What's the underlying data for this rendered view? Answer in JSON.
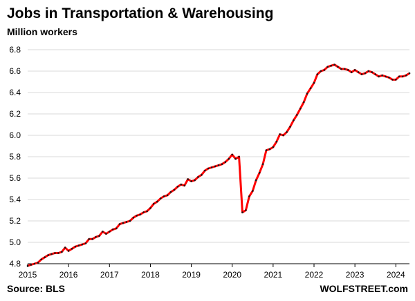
{
  "title": "Jobs in Transportation & Warehousing",
  "subtitle": "Million workers",
  "source": "Source: BLS",
  "brand": "WOLFSTREET.com",
  "colors": {
    "line": "#ff0000",
    "dots": "#1a1a1a",
    "grid": "#d9d9d9",
    "axis": "#000000"
  },
  "chart_data": {
    "type": "line",
    "title": "Jobs in Transportation & Warehousing",
    "ylabel": "Million workers",
    "xlabel": "",
    "xlim": [
      2015.0,
      2024.3333
    ],
    "ylim": [
      4.8,
      6.8
    ],
    "x_ticks": [
      2015,
      2016,
      2017,
      2018,
      2019,
      2020,
      2021,
      2022,
      2023,
      2024
    ],
    "y_ticks": [
      4.8,
      5.0,
      5.2,
      5.4,
      5.6,
      5.8,
      6.0,
      6.2,
      6.4,
      6.6,
      6.8
    ],
    "grid": "horizontal",
    "series": [
      {
        "x": [
          2015.0,
          2015.083,
          2015.167,
          2015.25,
          2015.333,
          2015.417,
          2015.5,
          2015.583,
          2015.667,
          2015.75,
          2015.833,
          2015.917,
          2016.0,
          2016.083,
          2016.167,
          2016.25,
          2016.333,
          2016.417,
          2016.5,
          2016.583,
          2016.667,
          2016.75,
          2016.833,
          2016.917,
          2017.0,
          2017.083,
          2017.167,
          2017.25,
          2017.333,
          2017.417,
          2017.5,
          2017.583,
          2017.667,
          2017.75,
          2017.833,
          2017.917,
          2018.0,
          2018.083,
          2018.167,
          2018.25,
          2018.333,
          2018.417,
          2018.5,
          2018.583,
          2018.667,
          2018.75,
          2018.833,
          2018.917,
          2019.0,
          2019.083,
          2019.167,
          2019.25,
          2019.333,
          2019.417,
          2019.5,
          2019.583,
          2019.667,
          2019.75,
          2019.833,
          2019.917,
          2020.0,
          2020.083,
          2020.167,
          2020.25,
          2020.333,
          2020.417,
          2020.5,
          2020.583,
          2020.667,
          2020.75,
          2020.833,
          2020.917,
          2021.0,
          2021.083,
          2021.167,
          2021.25,
          2021.333,
          2021.417,
          2021.5,
          2021.583,
          2021.667,
          2021.75,
          2021.833,
          2021.917,
          2022.0,
          2022.083,
          2022.167,
          2022.25,
          2022.333,
          2022.417,
          2022.5,
          2022.583,
          2022.667,
          2022.75,
          2022.833,
          2022.917,
          2023.0,
          2023.083,
          2023.167,
          2023.25,
          2023.333,
          2023.417,
          2023.5,
          2023.583,
          2023.667,
          2023.75,
          2023.833,
          2023.917,
          2024.0,
          2024.083,
          2024.167,
          2024.25,
          2024.333
        ],
        "y": [
          4.78,
          4.79,
          4.8,
          4.81,
          4.84,
          4.86,
          4.88,
          4.89,
          4.9,
          4.9,
          4.91,
          4.95,
          4.92,
          4.94,
          4.96,
          4.97,
          4.98,
          4.99,
          5.03,
          5.03,
          5.05,
          5.06,
          5.1,
          5.08,
          5.1,
          5.12,
          5.13,
          5.17,
          5.18,
          5.19,
          5.2,
          5.23,
          5.25,
          5.26,
          5.28,
          5.29,
          5.32,
          5.36,
          5.38,
          5.41,
          5.43,
          5.44,
          5.47,
          5.49,
          5.52,
          5.54,
          5.53,
          5.59,
          5.57,
          5.58,
          5.61,
          5.63,
          5.67,
          5.69,
          5.7,
          5.71,
          5.72,
          5.73,
          5.75,
          5.78,
          5.82,
          5.78,
          5.8,
          5.28,
          5.3,
          5.43,
          5.48,
          5.58,
          5.65,
          5.73,
          5.86,
          5.87,
          5.89,
          5.94,
          6.01,
          6.0,
          6.03,
          6.08,
          6.14,
          6.19,
          6.25,
          6.31,
          6.39,
          6.44,
          6.49,
          6.57,
          6.6,
          6.61,
          6.64,
          6.65,
          6.66,
          6.64,
          6.62,
          6.62,
          6.61,
          6.59,
          6.61,
          6.59,
          6.57,
          6.58,
          6.6,
          6.59,
          6.57,
          6.55,
          6.56,
          6.55,
          6.54,
          6.52,
          6.52,
          6.55,
          6.55,
          6.56,
          6.58
        ]
      }
    ]
  }
}
